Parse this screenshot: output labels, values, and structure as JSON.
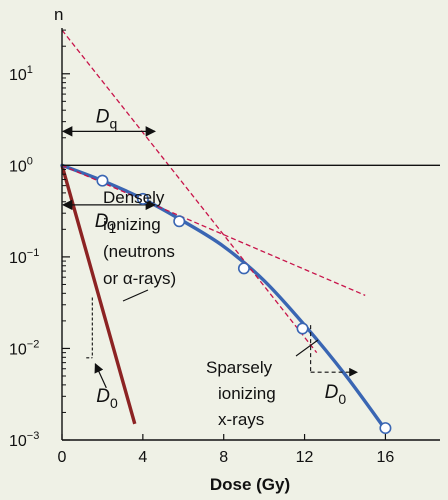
{
  "chart_data": {
    "type": "scatter",
    "title": "",
    "ylabel": "n",
    "xlabel": "Dose (Gy)",
    "xlim": [
      0,
      18.7
    ],
    "ylim_log10": [
      -3,
      1.5
    ],
    "y_scale": "log",
    "grid": false,
    "x_ticks": [
      0,
      4,
      8,
      12,
      16
    ],
    "x_tick_labels": [
      "0",
      "4",
      "8",
      "12",
      "16"
    ],
    "y_ticks": [
      {
        "value": 10,
        "base": "10",
        "exp": "1"
      },
      {
        "value": 1,
        "base": "10",
        "exp": "0"
      },
      {
        "value": 0.1,
        "base": "10",
        "exp": "−1"
      },
      {
        "value": 0.01,
        "base": "10",
        "exp": "−2"
      },
      {
        "value": 0.001,
        "base": "10",
        "exp": "−3"
      }
    ],
    "colors": {
      "background": "#eff1e6",
      "sparse_curve": "#3a66b3",
      "dense_line": "#8c2323",
      "extrapolation": "#c8144a",
      "axis": "#111111"
    },
    "series": [
      {
        "style": "line",
        "color": "#8c2323",
        "points": [
          [
            0,
            1
          ],
          [
            3.6,
            0.0015
          ]
        ]
      },
      {
        "style": "smooth-curve",
        "color": "#3a66b3",
        "points": [
          [
            0,
            1
          ],
          [
            2,
            0.68
          ],
          [
            4,
            0.43
          ],
          [
            6,
            0.245
          ],
          [
            8,
            0.13
          ],
          [
            10,
            0.055
          ],
          [
            12,
            0.018
          ],
          [
            14,
            0.0052
          ],
          [
            16,
            0.0013
          ]
        ]
      },
      {
        "style": "markers",
        "marker": "open-circle",
        "points": [
          [
            2,
            0.68
          ],
          [
            4,
            0.43
          ],
          [
            5.8,
            0.245
          ],
          [
            9,
            0.075
          ],
          [
            11.9,
            0.0165
          ],
          [
            16,
            0.00135
          ]
        ]
      },
      {
        "style": "dashed",
        "color": "#c8144a",
        "points": [
          [
            0,
            30
          ],
          [
            12.6,
            0.009
          ]
        ]
      },
      {
        "style": "dashed",
        "color": "#c8144a",
        "points": [
          [
            0,
            1
          ],
          [
            15,
            0.038
          ]
        ]
      },
      {
        "style": "reference-line",
        "color": "#111111",
        "points": [
          [
            0,
            1
          ],
          [
            18.7,
            1
          ]
        ]
      }
    ],
    "annotations": {
      "dq": {
        "main": "D",
        "sub": "q",
        "from": 0,
        "to": 4.6,
        "y": 2.35
      },
      "d1": {
        "main": "D",
        "sub": "1",
        "from": 0,
        "to": 4.6,
        "y": 0.37
      },
      "d0_dense": {
        "main": "D",
        "sub": "0",
        "x0": 1.2,
        "x1": 1.5,
        "y0": 0.028,
        "y1": 0.0079
      },
      "d0_sparse": {
        "main": "D",
        "sub": "0",
        "x0": 12.3,
        "x1": 14.6,
        "y0": 0.018,
        "y1": 0.0055
      },
      "densely_label": [
        "Densely",
        "ionizing",
        "(neutrons",
        "or α-rays)"
      ],
      "sparsely_label": [
        "Sparsely",
        "ionizing",
        "x-rays"
      ]
    }
  }
}
